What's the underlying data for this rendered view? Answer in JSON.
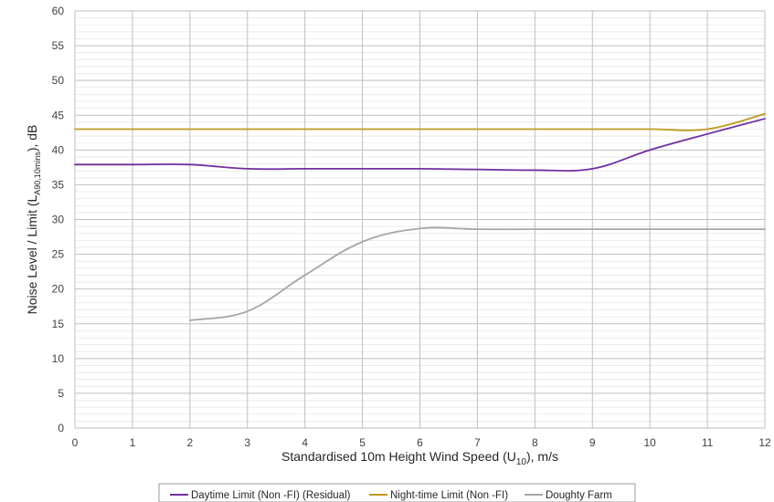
{
  "header_strip_text": "",
  "chart_data": {
    "type": "line",
    "xlabel": "Standardised 10m Height Wind Speed (U10), m/s",
    "xlabel_parts": {
      "main": "Standardised 10m Height Wind Speed (U",
      "sub": "10",
      "end": "), m/s"
    },
    "ylabel": "Noise Level / Limit (LA90,10mins), dB",
    "ylabel_parts": {
      "main": "Noise Level / Limit (L",
      "sub": "A90,10mins",
      "end": "), dB"
    },
    "xlim": [
      0,
      12
    ],
    "ylim": [
      0,
      60
    ],
    "x_ticks": [
      "0",
      "1",
      "2",
      "3",
      "4",
      "5",
      "6",
      "7",
      "8",
      "9",
      "10",
      "11",
      "12"
    ],
    "y_ticks": [
      "0",
      "5",
      "10",
      "15",
      "20",
      "25",
      "30",
      "35",
      "40",
      "45",
      "50",
      "55",
      "60"
    ],
    "grid": true,
    "legend_position": "bottom",
    "series": [
      {
        "name": "Daytime Limit (Non -FI) (Residual)",
        "color": "#7030a0",
        "x": [
          0,
          1,
          2,
          3,
          4,
          5,
          6,
          7,
          8,
          9,
          10,
          11,
          12
        ],
        "y": [
          37.9,
          37.9,
          37.9,
          37.3,
          37.3,
          37.3,
          37.3,
          37.2,
          37.1,
          37.3,
          40.0,
          42.3,
          44.5
        ]
      },
      {
        "name": "Night-time Limit (Non -FI)",
        "color": "#c09a1e",
        "x": [
          0,
          1,
          2,
          3,
          4,
          5,
          6,
          7,
          8,
          9,
          10,
          11,
          12
        ],
        "y": [
          43.0,
          43.0,
          43.0,
          43.0,
          43.0,
          43.0,
          43.0,
          43.0,
          43.0,
          43.0,
          43.0,
          43.0,
          45.2
        ]
      },
      {
        "name": "Doughty Farm",
        "color": "#a6a6a6",
        "x": [
          2,
          3,
          4,
          5,
          6,
          7,
          8,
          9,
          10,
          11,
          12
        ],
        "y": [
          15.5,
          16.8,
          22.0,
          26.8,
          28.7,
          28.6,
          28.6,
          28.6,
          28.6,
          28.6,
          28.6
        ]
      }
    ]
  }
}
